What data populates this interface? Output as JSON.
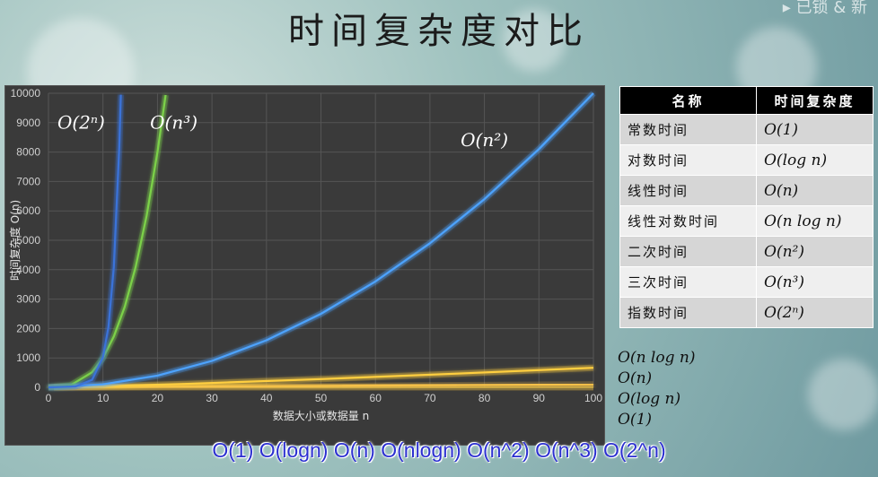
{
  "page": {
    "title": "时间复杂度对比",
    "corner_watermark": "▸ 已锁 & 新",
    "caption": "O(1) O(logn) O(n) O(nlogn) O(n^2) O(n^3) O(2^n)"
  },
  "table": {
    "headers": [
      "名称",
      "时间复杂度"
    ],
    "rows": [
      {
        "name": "常数时间",
        "complexity": "O(1)"
      },
      {
        "name": "对数时间",
        "complexity": "O(log n)"
      },
      {
        "name": "线性时间",
        "complexity": "O(n)"
      },
      {
        "name": "线性对数时间",
        "complexity": "O(n log n)"
      },
      {
        "name": "二次时间",
        "complexity": "O(n²)"
      },
      {
        "name": "三次时间",
        "complexity": "O(n³)"
      },
      {
        "name": "指数时间",
        "complexity": "O(2ⁿ)"
      }
    ]
  },
  "legend_stack": [
    "O(n log n)",
    "O(n)",
    "O(log n)",
    "O(1)"
  ],
  "chart_data": {
    "type": "line",
    "xlabel": "数据大小或数据量 n",
    "ylabel": "时间复杂度 O(n)",
    "xlim": [
      0,
      100
    ],
    "ylim": [
      0,
      10000
    ],
    "x_ticks": [
      0,
      10,
      20,
      30,
      40,
      50,
      60,
      70,
      80,
      90,
      100
    ],
    "y_ticks": [
      0,
      1000,
      2000,
      3000,
      4000,
      5000,
      6000,
      7000,
      8000,
      9000,
      10000
    ],
    "grid": true,
    "series": [
      {
        "name": "O(1)",
        "color": "#f2b233",
        "x": [
          0,
          100
        ],
        "y": [
          1,
          1
        ]
      },
      {
        "name": "O(log n)",
        "color": "#e8c84a",
        "x": [
          1,
          25,
          50,
          75,
          100
        ],
        "y": [
          0,
          4.64,
          5.64,
          6.23,
          6.64
        ]
      },
      {
        "name": "O(n)",
        "color": "#f5c04a",
        "x": [
          0,
          100
        ],
        "y": [
          0,
          100
        ]
      },
      {
        "name": "O(n log n)",
        "color": "#ffcf40",
        "x": [
          1,
          10,
          25,
          50,
          75,
          100
        ],
        "y": [
          0,
          33,
          116,
          282,
          467,
          664
        ]
      },
      {
        "name": "O(n²)",
        "color": "#4da3ff",
        "x": [
          0,
          10,
          20,
          30,
          40,
          50,
          60,
          70,
          80,
          90,
          100
        ],
        "y": [
          0,
          100,
          400,
          900,
          1600,
          2500,
          3600,
          4900,
          6400,
          8100,
          10000
        ]
      },
      {
        "name": "O(n³)",
        "color": "#7cd24a",
        "x": [
          0,
          4,
          8,
          10,
          12,
          14,
          16,
          18,
          20,
          21.5
        ],
        "y": [
          0,
          64,
          512,
          1000,
          1728,
          2744,
          4096,
          5832,
          8000,
          9938
        ]
      },
      {
        "name": "O(2ⁿ)",
        "color": "#3b73d9",
        "x": [
          0,
          5,
          8,
          10,
          11,
          12,
          13,
          13.28
        ],
        "y": [
          1,
          32,
          256,
          1024,
          2048,
          4096,
          8192,
          9950
        ]
      }
    ],
    "annotations": [
      {
        "text": "O(2ⁿ)",
        "x": 6,
        "y": 8800
      },
      {
        "text": "O(n³)",
        "x": 23,
        "y": 8800
      },
      {
        "text": "O(n²)",
        "x": 80,
        "y": 8200
      }
    ]
  }
}
